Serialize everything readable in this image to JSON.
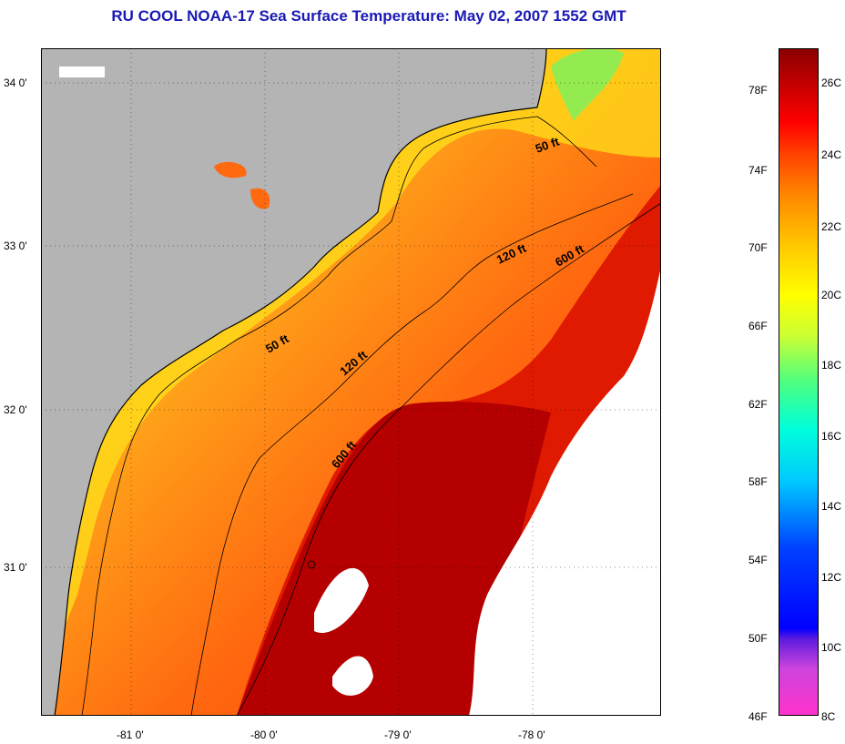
{
  "title": "RU COOL  NOAA-17  Sea Surface Temperature:  May 02, 2007 1552 GMT",
  "map": {
    "lat_labels": [
      "34 0'",
      "33 0'",
      "32 0'",
      "31 0'"
    ],
    "lon_labels": [
      "-81 0'",
      "-80 0'",
      "-79 0'",
      "-78 0'"
    ],
    "contours": [
      {
        "label": "50 ft"
      },
      {
        "label": "50 ft"
      },
      {
        "label": "120 ft"
      },
      {
        "label": "120 ft"
      },
      {
        "label": "600 ft"
      },
      {
        "label": "600 ft"
      }
    ],
    "colors": {
      "land": "#b4b4b4",
      "cloud": "#ffffff",
      "coast": "#000000"
    }
  },
  "colorbar": {
    "fahrenheit_labels": [
      "78F",
      "74F",
      "70F",
      "66F",
      "62F",
      "58F",
      "54F",
      "50F",
      "46F"
    ],
    "celsius_labels": [
      "26C",
      "24C",
      "22C",
      "20C",
      "18C",
      "16C",
      "14C",
      "12C",
      "10C",
      "8C"
    ]
  }
}
